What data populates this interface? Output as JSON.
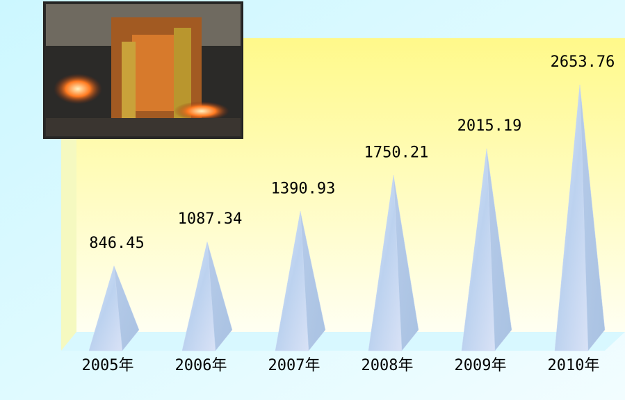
{
  "chart_data": {
    "type": "pyramid",
    "categories": [
      "2005年",
      "2006年",
      "2007年",
      "2008年",
      "2009年",
      "2010年"
    ],
    "values": [
      846.45,
      1087.34,
      1390.93,
      1750.21,
      2015.19,
      2653.76
    ],
    "color": "#c9d9f2"
  }
}
